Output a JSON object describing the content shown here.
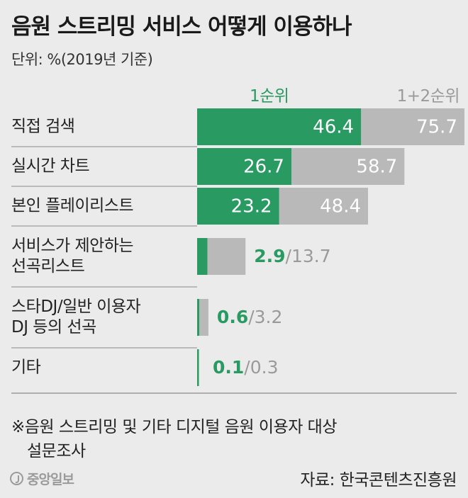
{
  "chart_data": {
    "type": "bar",
    "orientation": "horizontal",
    "title": "음원 스트리밍 서비스 어떻게 이용하나",
    "unit_label": "단위: %(2019년 기준)",
    "categories": [
      [
        "직접 검색"
      ],
      [
        "실시간 차트"
      ],
      [
        "본인 플레이리스트"
      ],
      [
        "서비스가 제안하는",
        "선곡리스트"
      ],
      [
        "스타DJ/일반 이용자",
        "DJ 등의 선곡"
      ],
      [
        "기타"
      ]
    ],
    "series": [
      {
        "name": "1순위",
        "values": [
          46.4,
          26.7,
          23.2,
          2.9,
          0.6,
          0.1
        ],
        "labels": [
          "46.4",
          "26.7",
          "23.2",
          "2.9",
          "0.6",
          "0.1"
        ],
        "color": "#2a9a63"
      },
      {
        "name": "1+2순위",
        "values": [
          75.7,
          58.7,
          48.4,
          13.7,
          3.2,
          0.3
        ],
        "labels": [
          "75.7",
          "58.7",
          "48.4",
          "13.7",
          "3.2",
          "0.3"
        ],
        "color": "#b9b9b9"
      }
    ],
    "label_separator": "/",
    "xlim": [
      0,
      100
    ],
    "grid": false,
    "legend": "top"
  },
  "note": [
    "※음원 스트리밍 및 기타 디지털 음원 이용자 대상",
    "설문조사"
  ],
  "source": "자료: 한국콘텐츠진흥원",
  "logo": "중앙일보",
  "colors": {
    "background": "#ebebeb",
    "primary": "#2a9a63",
    "total": "#b9b9b9",
    "divider": "#8a8a8a"
  }
}
